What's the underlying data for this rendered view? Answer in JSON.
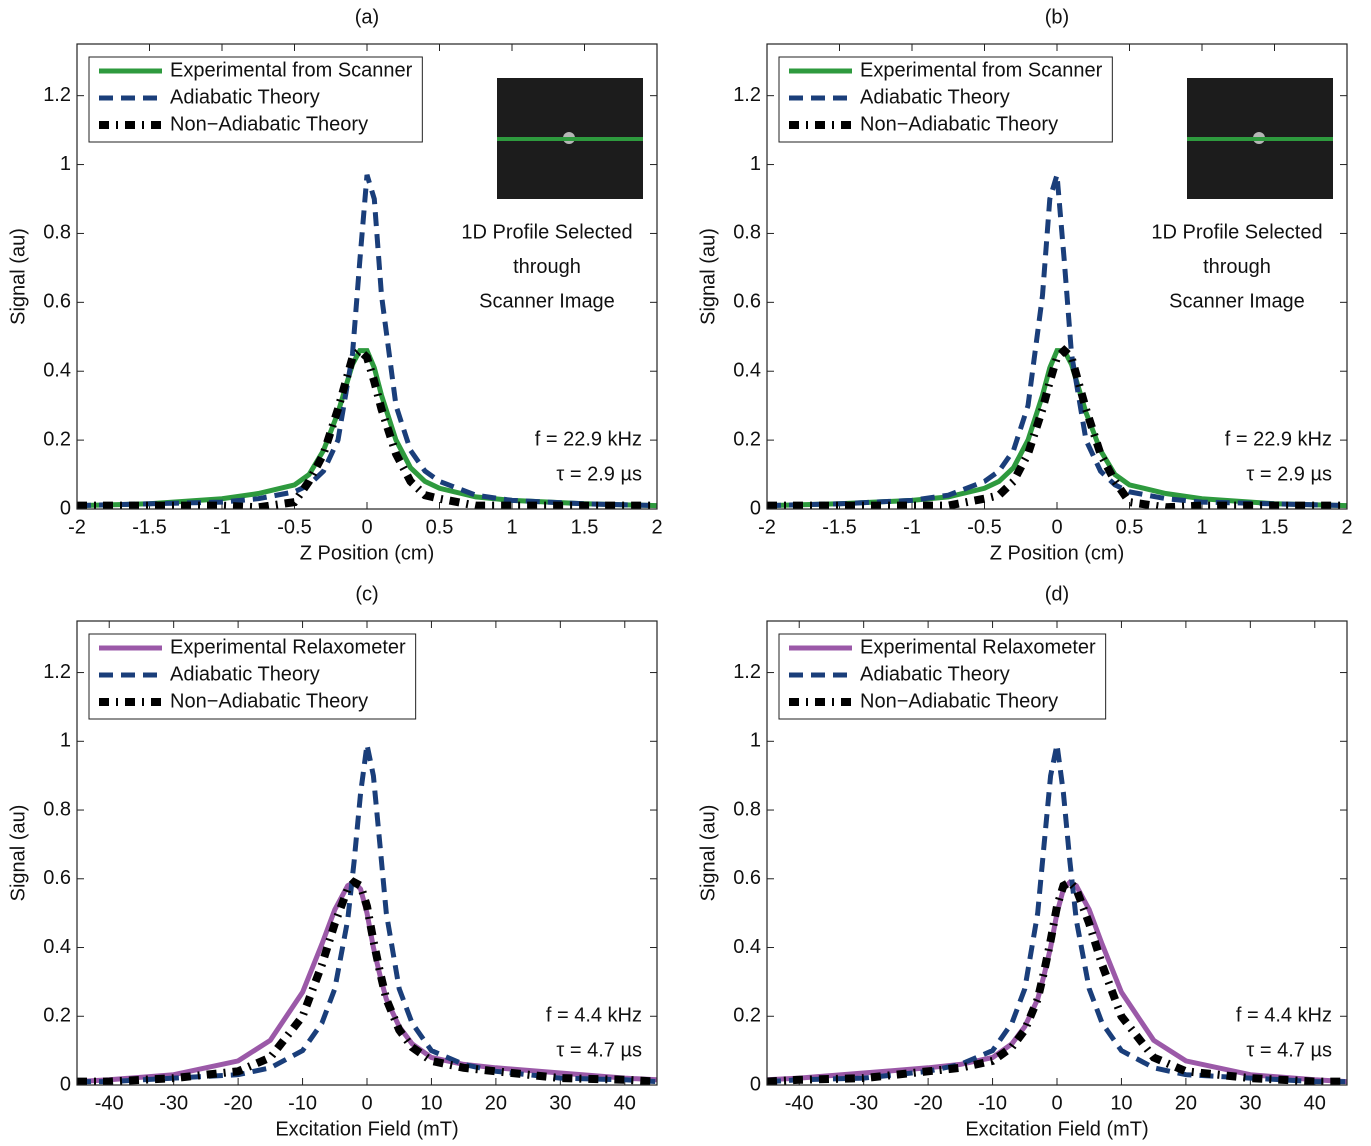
{
  "chart_data": [
    {
      "type": "line",
      "title": "(a)",
      "xlabel": "Z Position (cm)",
      "ylabel": "Signal (au)",
      "x": [
        -2,
        -1.5,
        -1,
        -0.75,
        -0.5,
        -0.4,
        -0.3,
        -0.2,
        -0.1,
        -0.05,
        0,
        0.05,
        0.1,
        0.2,
        0.3,
        0.4,
        0.5,
        0.75,
        1,
        1.5,
        2
      ],
      "series": [
        {
          "name": "Experimental from Scanner",
          "color": "#2e9a3e",
          "style": "solid",
          "values": [
            0.01,
            0.015,
            0.03,
            0.045,
            0.07,
            0.1,
            0.17,
            0.28,
            0.42,
            0.46,
            0.46,
            0.41,
            0.33,
            0.2,
            0.12,
            0.08,
            0.06,
            0.035,
            0.025,
            0.015,
            0.01
          ]
        },
        {
          "name": "Adiabatic Theory",
          "color": "#1a3e7a",
          "style": "dashed",
          "values": [
            0.01,
            0.015,
            0.02,
            0.03,
            0.05,
            0.07,
            0.11,
            0.2,
            0.45,
            0.72,
            0.97,
            0.9,
            0.62,
            0.3,
            0.17,
            0.11,
            0.08,
            0.04,
            0.025,
            0.015,
            0.01
          ]
        },
        {
          "name": "Non−Adiabatic Theory",
          "color": "#000000",
          "style": "dashdot",
          "values": [
            0.01,
            0.01,
            0.01,
            0.005,
            0.02,
            0.08,
            0.16,
            0.29,
            0.44,
            0.46,
            0.44,
            0.37,
            0.29,
            0.16,
            0.08,
            0.04,
            0.03,
            0.01,
            0.01,
            0.01,
            0.01
          ]
        }
      ],
      "xlim": [
        -2,
        2
      ],
      "ylim": [
        0,
        1.35
      ],
      "xticks": [
        -2,
        -1.5,
        -1,
        -0.5,
        0,
        0.5,
        1,
        1.5,
        2
      ],
      "yticks": [
        0,
        0.2,
        0.4,
        0.6,
        0.8,
        1,
        1.2
      ],
      "legend": "upper left",
      "inset_note": [
        "1D Profile Selected",
        "through",
        "Scanner Image"
      ],
      "annotations": [
        "f = 22.9 kHz",
        "τ = 2.9 µs"
      ]
    },
    {
      "type": "line",
      "title": "(b)",
      "xlabel": "Z Position (cm)",
      "ylabel": "Signal (au)",
      "x": [
        -2,
        -1.5,
        -1,
        -0.75,
        -0.5,
        -0.4,
        -0.3,
        -0.2,
        -0.1,
        -0.05,
        0,
        0.05,
        0.1,
        0.2,
        0.3,
        0.4,
        0.5,
        0.75,
        1,
        1.5,
        2
      ],
      "series": [
        {
          "name": "Experimental from Scanner",
          "color": "#2e9a3e",
          "style": "solid",
          "values": [
            0.01,
            0.015,
            0.025,
            0.035,
            0.06,
            0.08,
            0.12,
            0.2,
            0.33,
            0.41,
            0.46,
            0.46,
            0.42,
            0.28,
            0.17,
            0.1,
            0.07,
            0.045,
            0.03,
            0.015,
            0.01
          ]
        },
        {
          "name": "Adiabatic Theory",
          "color": "#1a3e7a",
          "style": "dashed",
          "values": [
            0.01,
            0.015,
            0.025,
            0.04,
            0.08,
            0.11,
            0.17,
            0.3,
            0.62,
            0.9,
            0.97,
            0.72,
            0.45,
            0.2,
            0.11,
            0.07,
            0.05,
            0.03,
            0.02,
            0.015,
            0.01
          ]
        },
        {
          "name": "Non−Adiabatic Theory",
          "color": "#000000",
          "style": "dashdot",
          "values": [
            0.01,
            0.01,
            0.01,
            0.01,
            0.03,
            0.04,
            0.08,
            0.16,
            0.29,
            0.37,
            0.44,
            0.46,
            0.44,
            0.29,
            0.16,
            0.08,
            0.02,
            0.005,
            0.01,
            0.01,
            0.01
          ]
        }
      ],
      "xlim": [
        -2,
        2
      ],
      "ylim": [
        0,
        1.35
      ],
      "xticks": [
        -2,
        -1.5,
        -1,
        -0.5,
        0,
        0.5,
        1,
        1.5,
        2
      ],
      "yticks": [
        0,
        0.2,
        0.4,
        0.6,
        0.8,
        1,
        1.2
      ],
      "legend": "upper left",
      "inset_note": [
        "1D Profile Selected",
        "through",
        "Scanner Image"
      ],
      "annotations": [
        "f = 22.9 kHz",
        "τ = 2.9 µs"
      ]
    },
    {
      "type": "line",
      "title": "(c)",
      "xlabel": "Excitation Field (mT)",
      "ylabel": "Signal (au)",
      "x": [
        -45,
        -40,
        -30,
        -20,
        -15,
        -10,
        -7,
        -5,
        -3,
        -2,
        -1,
        0,
        1,
        2,
        3,
        5,
        7,
        10,
        15,
        20,
        30,
        40,
        45
      ],
      "series": [
        {
          "name": "Experimental Relaxometer",
          "color": "#9b59a8",
          "style": "solid",
          "values": [
            0.01,
            0.015,
            0.03,
            0.07,
            0.13,
            0.27,
            0.41,
            0.51,
            0.58,
            0.59,
            0.57,
            0.5,
            0.4,
            0.32,
            0.25,
            0.17,
            0.12,
            0.08,
            0.06,
            0.05,
            0.035,
            0.02,
            0.015
          ]
        },
        {
          "name": "Adiabatic Theory",
          "color": "#1a3e7a",
          "style": "dashed",
          "values": [
            0.01,
            0.01,
            0.02,
            0.03,
            0.05,
            0.1,
            0.18,
            0.28,
            0.48,
            0.65,
            0.85,
            0.99,
            0.9,
            0.7,
            0.5,
            0.28,
            0.18,
            0.1,
            0.06,
            0.04,
            0.02,
            0.015,
            0.01
          ]
        },
        {
          "name": "Non−Adiabatic Theory",
          "color": "#000000",
          "style": "dashdot",
          "values": [
            0.01,
            0.01,
            0.02,
            0.04,
            0.08,
            0.2,
            0.35,
            0.47,
            0.57,
            0.59,
            0.58,
            0.52,
            0.42,
            0.33,
            0.25,
            0.16,
            0.11,
            0.07,
            0.05,
            0.04,
            0.02,
            0.015,
            0.01
          ]
        }
      ],
      "xlim": [
        -45,
        45
      ],
      "ylim": [
        0,
        1.35
      ],
      "xticks": [
        -40,
        -30,
        -20,
        -10,
        0,
        10,
        20,
        30,
        40
      ],
      "yticks": [
        0,
        0.2,
        0.4,
        0.6,
        0.8,
        1,
        1.2
      ],
      "legend": "upper left",
      "annotations": [
        "f = 4.4 kHz",
        "τ = 4.7 µs"
      ]
    },
    {
      "type": "line",
      "title": "(d)",
      "xlabel": "Excitation Field (mT)",
      "ylabel": "Signal (au)",
      "x": [
        -45,
        -40,
        -30,
        -20,
        -15,
        -10,
        -7,
        -5,
        -3,
        -2,
        -1,
        0,
        1,
        2,
        3,
        5,
        7,
        10,
        15,
        20,
        30,
        40,
        45
      ],
      "series": [
        {
          "name": "Experimental Relaxometer",
          "color": "#9b59a8",
          "style": "solid",
          "values": [
            0.015,
            0.02,
            0.035,
            0.05,
            0.06,
            0.08,
            0.12,
            0.17,
            0.25,
            0.32,
            0.4,
            0.5,
            0.57,
            0.59,
            0.58,
            0.51,
            0.41,
            0.27,
            0.13,
            0.07,
            0.03,
            0.015,
            0.01
          ]
        },
        {
          "name": "Adiabatic Theory",
          "color": "#1a3e7a",
          "style": "dashed",
          "values": [
            0.01,
            0.015,
            0.02,
            0.04,
            0.06,
            0.1,
            0.18,
            0.28,
            0.5,
            0.7,
            0.9,
            0.99,
            0.85,
            0.65,
            0.48,
            0.28,
            0.18,
            0.1,
            0.05,
            0.03,
            0.02,
            0.01,
            0.01
          ]
        },
        {
          "name": "Non−Adiabatic Theory",
          "color": "#000000",
          "style": "dashdot",
          "values": [
            0.01,
            0.015,
            0.02,
            0.04,
            0.05,
            0.07,
            0.11,
            0.16,
            0.25,
            0.33,
            0.42,
            0.52,
            0.58,
            0.59,
            0.57,
            0.47,
            0.35,
            0.2,
            0.08,
            0.04,
            0.02,
            0.01,
            0.01
          ]
        }
      ],
      "xlim": [
        -45,
        45
      ],
      "ylim": [
        0,
        1.35
      ],
      "xticks": [
        -40,
        -30,
        -20,
        -10,
        0,
        10,
        20,
        30,
        40
      ],
      "yticks": [
        0,
        0.2,
        0.4,
        0.6,
        0.8,
        1,
        1.2
      ],
      "legend": "upper left",
      "annotations": [
        "f = 4.4 kHz",
        "τ = 4.7 µs"
      ]
    }
  ]
}
